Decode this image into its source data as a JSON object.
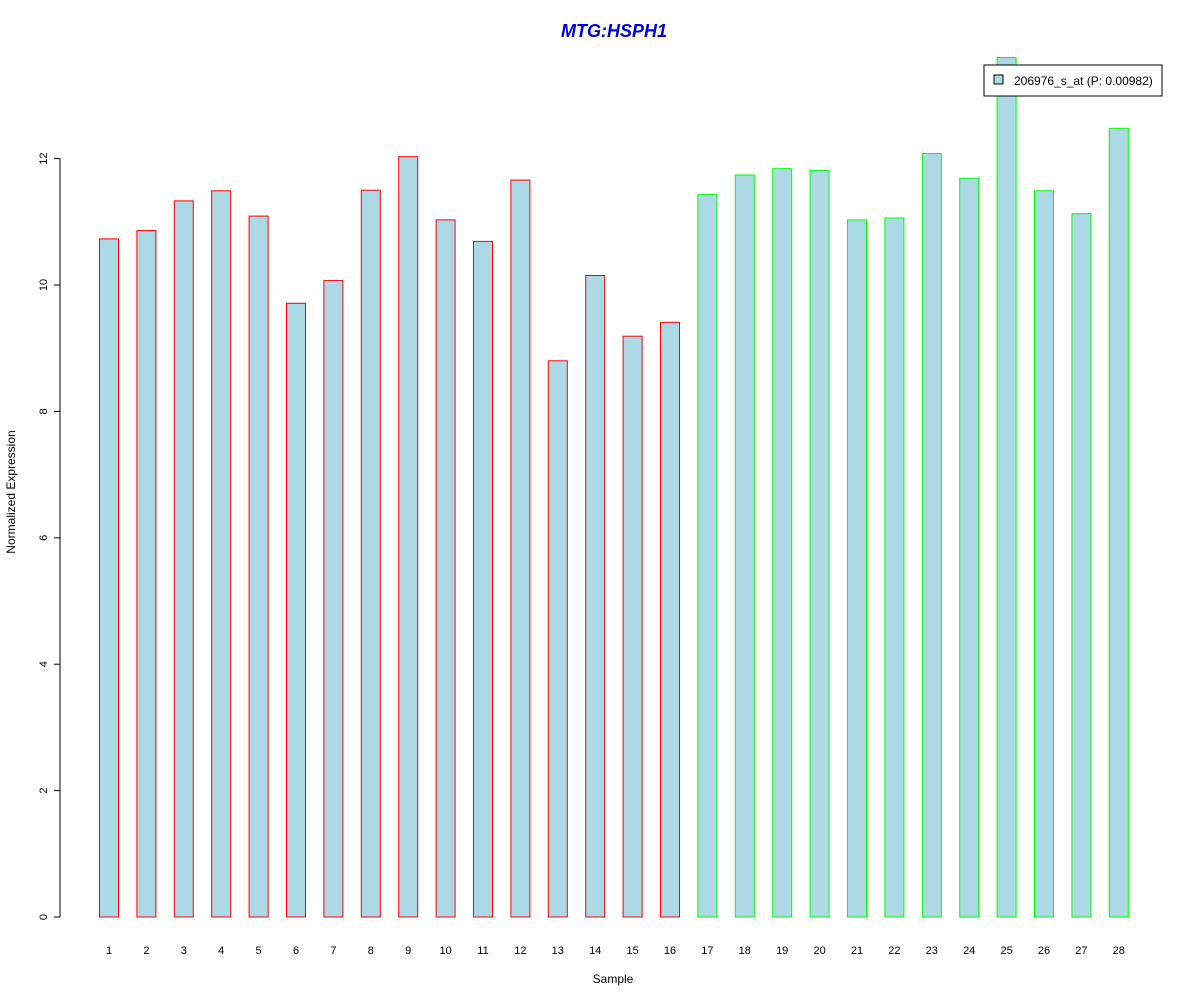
{
  "chart_data": {
    "type": "bar",
    "title": "MTG:HSPH1",
    "xlabel": "Sample",
    "ylabel": "Normalized Expression",
    "ylim": [
      0,
      13.6
    ],
    "yticks": [
      0,
      2,
      4,
      6,
      8,
      10,
      12
    ],
    "grid": false,
    "categories": [
      "1",
      "2",
      "3",
      "4",
      "5",
      "6",
      "7",
      "8",
      "9",
      "10",
      "11",
      "12",
      "13",
      "14",
      "15",
      "16",
      "17",
      "18",
      "19",
      "20",
      "21",
      "22",
      "23",
      "24",
      "25",
      "26",
      "27",
      "28"
    ],
    "values": [
      10.73,
      10.86,
      11.33,
      11.49,
      11.09,
      9.71,
      10.07,
      11.5,
      12.03,
      11.03,
      10.69,
      11.66,
      8.8,
      10.15,
      9.19,
      9.41,
      11.43,
      11.74,
      11.84,
      11.81,
      11.03,
      11.06,
      12.08,
      11.69,
      13.6,
      11.49,
      11.13,
      12.48
    ],
    "bar_fill": "#add8e6",
    "group_border_colors": [
      "#ff0000",
      "#ff0000",
      "#ff0000",
      "#ff0000",
      "#ff0000",
      "#ff0000",
      "#ff0000",
      "#ff0000",
      "#ff0000",
      "#ff0000",
      "#ff0000",
      "#ff0000",
      "#ff0000",
      "#ff0000",
      "#ff0000",
      "#ff0000",
      "#00ff00",
      "#00ff00",
      "#00ff00",
      "#00ff00",
      "#00ff00",
      "#00ff00",
      "#00ff00",
      "#00ff00",
      "#00ff00",
      "#00ff00",
      "#00ff00",
      "#00ff00"
    ],
    "legend": {
      "position": "top-right",
      "entries": [
        {
          "label": "206976_s_at (P: 0.00982)",
          "fill": "#add8e6"
        }
      ]
    },
    "title_color": "#0000cd"
  }
}
